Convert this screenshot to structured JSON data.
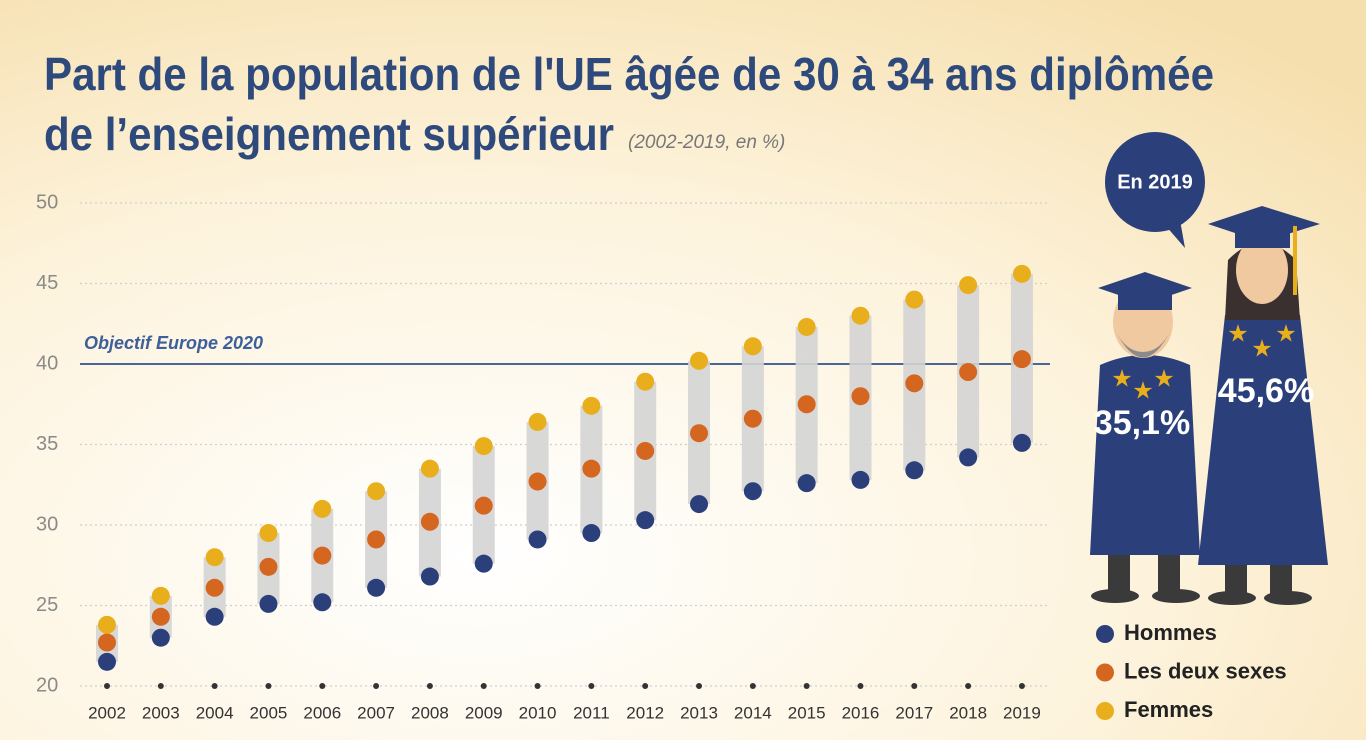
{
  "chart_data": {
    "type": "dot-range",
    "title": "Part de la population de l'UE âgée de 30 à 34 ans diplômée",
    "title_line2": "de l’enseignement supérieur",
    "subtitle": "(2002-2019, en %)",
    "categories": [
      "2002",
      "2003",
      "2004",
      "2005",
      "2006",
      "2007",
      "2008",
      "2009",
      "2010",
      "2011",
      "2012",
      "2013",
      "2014",
      "2015",
      "2016",
      "2017",
      "2018",
      "2019"
    ],
    "series": [
      {
        "name": "Hommes",
        "color": "#2b3f7a",
        "values": [
          21.5,
          23.0,
          24.3,
          25.1,
          25.2,
          26.1,
          26.8,
          27.6,
          29.1,
          29.5,
          30.3,
          31.3,
          32.1,
          32.6,
          32.8,
          33.4,
          34.2,
          35.1
        ],
        "value_labels": [
          null,
          null,
          null,
          null,
          null,
          null,
          null,
          null,
          null,
          null,
          null,
          null,
          null,
          null,
          null,
          null,
          null,
          "35,1%"
        ]
      },
      {
        "name": "Les deux sexes",
        "color": "#d4661f",
        "values": [
          22.7,
          24.3,
          26.1,
          27.4,
          28.1,
          29.1,
          30.2,
          31.2,
          32.7,
          33.5,
          34.6,
          35.7,
          36.6,
          37.5,
          38.0,
          38.8,
          39.5,
          40.3
        ]
      },
      {
        "name": "Femmes",
        "color": "#e9ae1c",
        "values": [
          23.8,
          25.6,
          28.0,
          29.5,
          31.0,
          32.1,
          33.5,
          34.9,
          36.4,
          37.4,
          38.9,
          40.2,
          41.1,
          42.3,
          43.0,
          44.0,
          44.9,
          45.6
        ],
        "value_labels": [
          null,
          null,
          null,
          null,
          null,
          null,
          null,
          null,
          null,
          null,
          null,
          null,
          null,
          null,
          null,
          null,
          null,
          "45,6%"
        ]
      }
    ],
    "ylim": [
      20,
      50
    ],
    "yticks": [
      20,
      25,
      30,
      35,
      40,
      45,
      50
    ],
    "grid": true,
    "reference_line": {
      "value": 40,
      "label": "Objectif Europe 2020"
    },
    "callout": "En 2019",
    "legend": "bottom-right"
  }
}
